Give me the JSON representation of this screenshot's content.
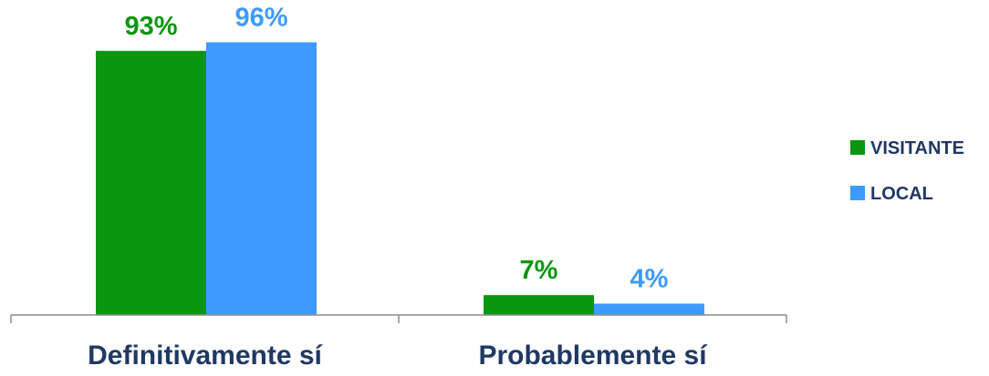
{
  "chart_data": {
    "type": "bar",
    "categories": [
      "Definitivamente sí",
      "Probablemente sí"
    ],
    "series": [
      {
        "name": "VISITANTE",
        "values": [
          93,
          7
        ],
        "labels": [
          "93%",
          "7%"
        ],
        "color": "#0a960f"
      },
      {
        "name": "LOCAL",
        "values": [
          96,
          4
        ],
        "labels": [
          "96%",
          "4%"
        ],
        "color": "#3d9bff"
      }
    ],
    "unit": "%",
    "ylim": [
      0,
      100
    ],
    "grid": false,
    "legend_position": "right"
  }
}
